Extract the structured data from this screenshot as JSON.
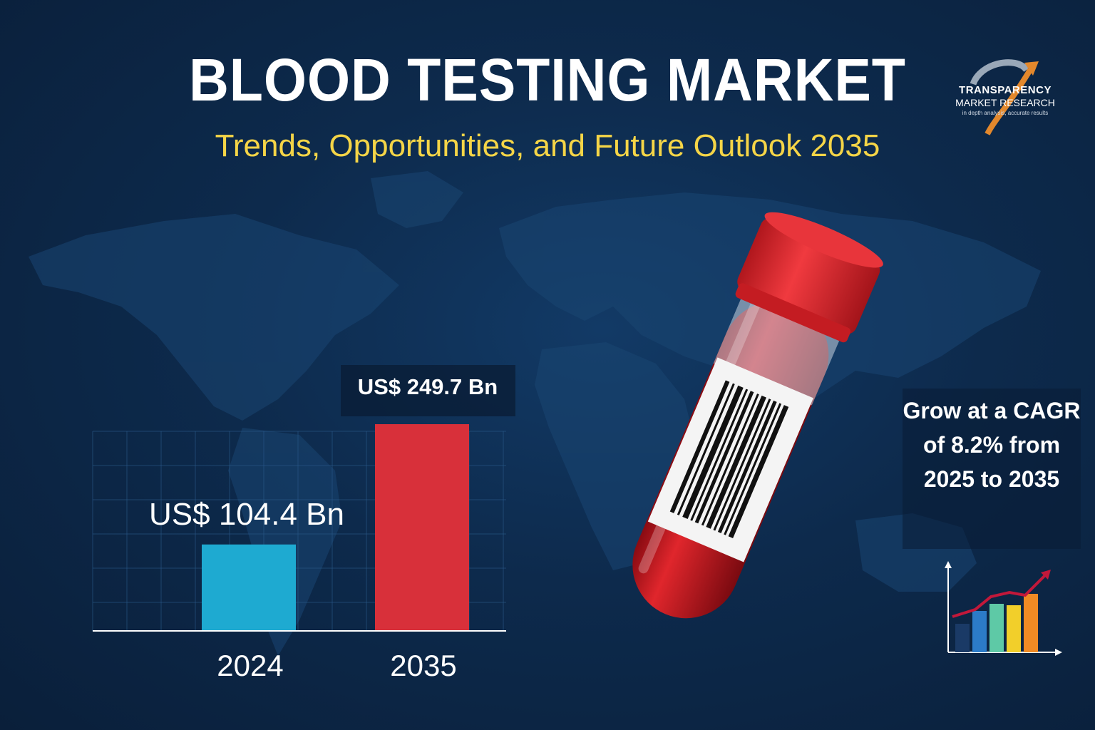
{
  "title": "BLOOD TESTING MARKET",
  "subtitle": "Trends, Opportunities, and Future Outlook 2035",
  "logo": {
    "line1": "TRANSPARENCY",
    "line2": "MARKET RESEARCH",
    "line3": "in depth analysis, accurate results"
  },
  "cagr_text": "Grow at a CAGR of 8.2% from 2025 to 2035",
  "colors": {
    "bar_2024": "#1eaad1",
    "bar_2035": "#d8303a",
    "title": "#ffffff",
    "subtitle": "#f5d547",
    "background": "#0d2a4c"
  },
  "icons": [
    "world-map-icon",
    "blood-tube-icon",
    "barcode-icon",
    "growth-chart-icon",
    "logo-arrow-icon"
  ],
  "chart_data": {
    "type": "bar",
    "categories": [
      "2024",
      "2035"
    ],
    "values": [
      104.4,
      249.7
    ],
    "data_labels": [
      "US$ 104.4 Bn",
      "US$ 249.7 Bn"
    ],
    "unit": "US$ Bn",
    "title": "",
    "xlabel": "",
    "ylabel": "",
    "ylim": [
      0,
      330
    ],
    "grid": true,
    "legend": "none"
  }
}
